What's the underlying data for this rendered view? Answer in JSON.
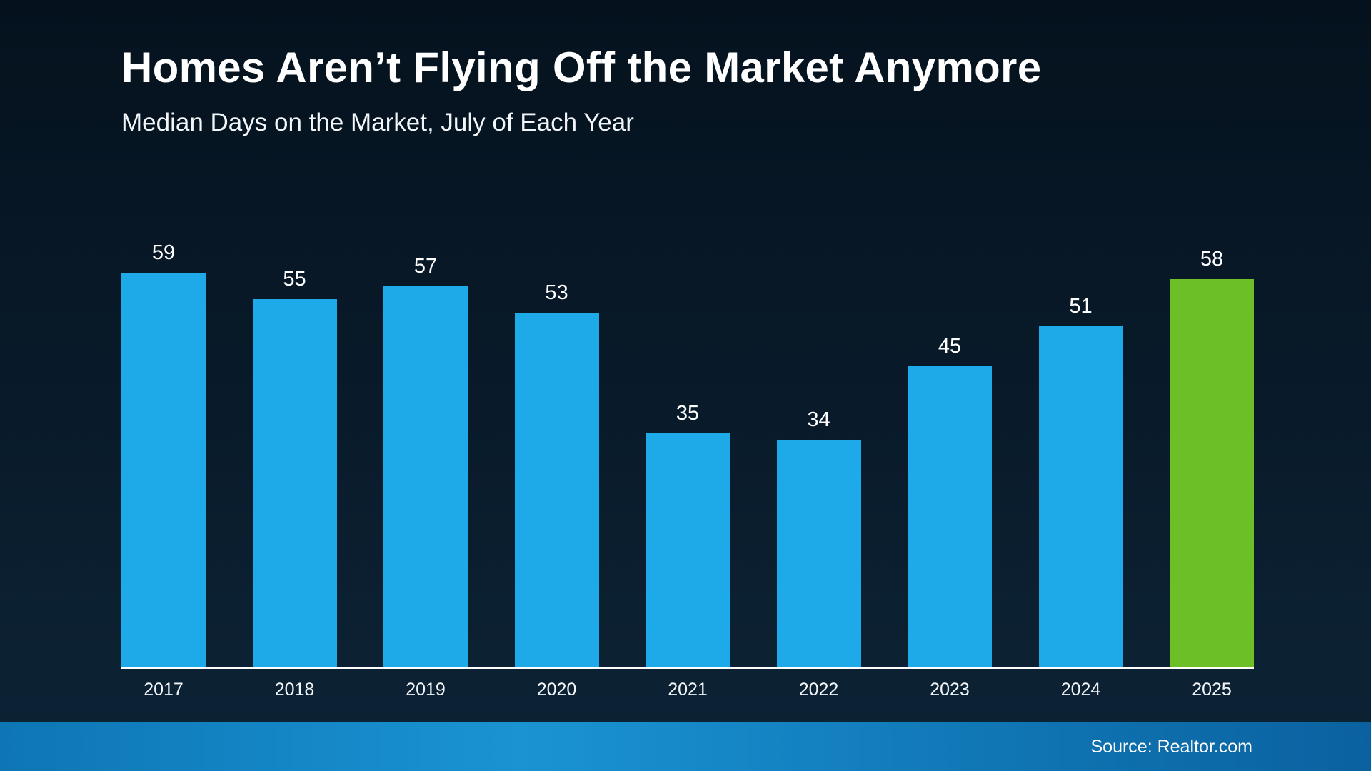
{
  "page": {
    "title": "Homes Aren’t Flying Off the Market Anymore",
    "subtitle": "Median Days on the Market, July of Each Year"
  },
  "footer": {
    "source": "Source: Realtor.com"
  },
  "chart_data": {
    "type": "bar",
    "title": "Homes Aren’t Flying Off the Market Anymore",
    "subtitle": "Median Days on the Market, July of Each Year",
    "categories": [
      "2017",
      "2018",
      "2019",
      "2020",
      "2021",
      "2022",
      "2023",
      "2024",
      "2025"
    ],
    "values": [
      59,
      55,
      57,
      53,
      35,
      34,
      45,
      51,
      58
    ],
    "xlabel": "",
    "ylabel": "Median Days on the Market",
    "ylim": [
      0,
      62
    ],
    "grid": false,
    "legend": false,
    "data_labels": true,
    "bar_color": "#1ea9e9",
    "highlight_color": "#6dbf27",
    "highlight_index": 8,
    "source": "Source: Realtor.com"
  }
}
